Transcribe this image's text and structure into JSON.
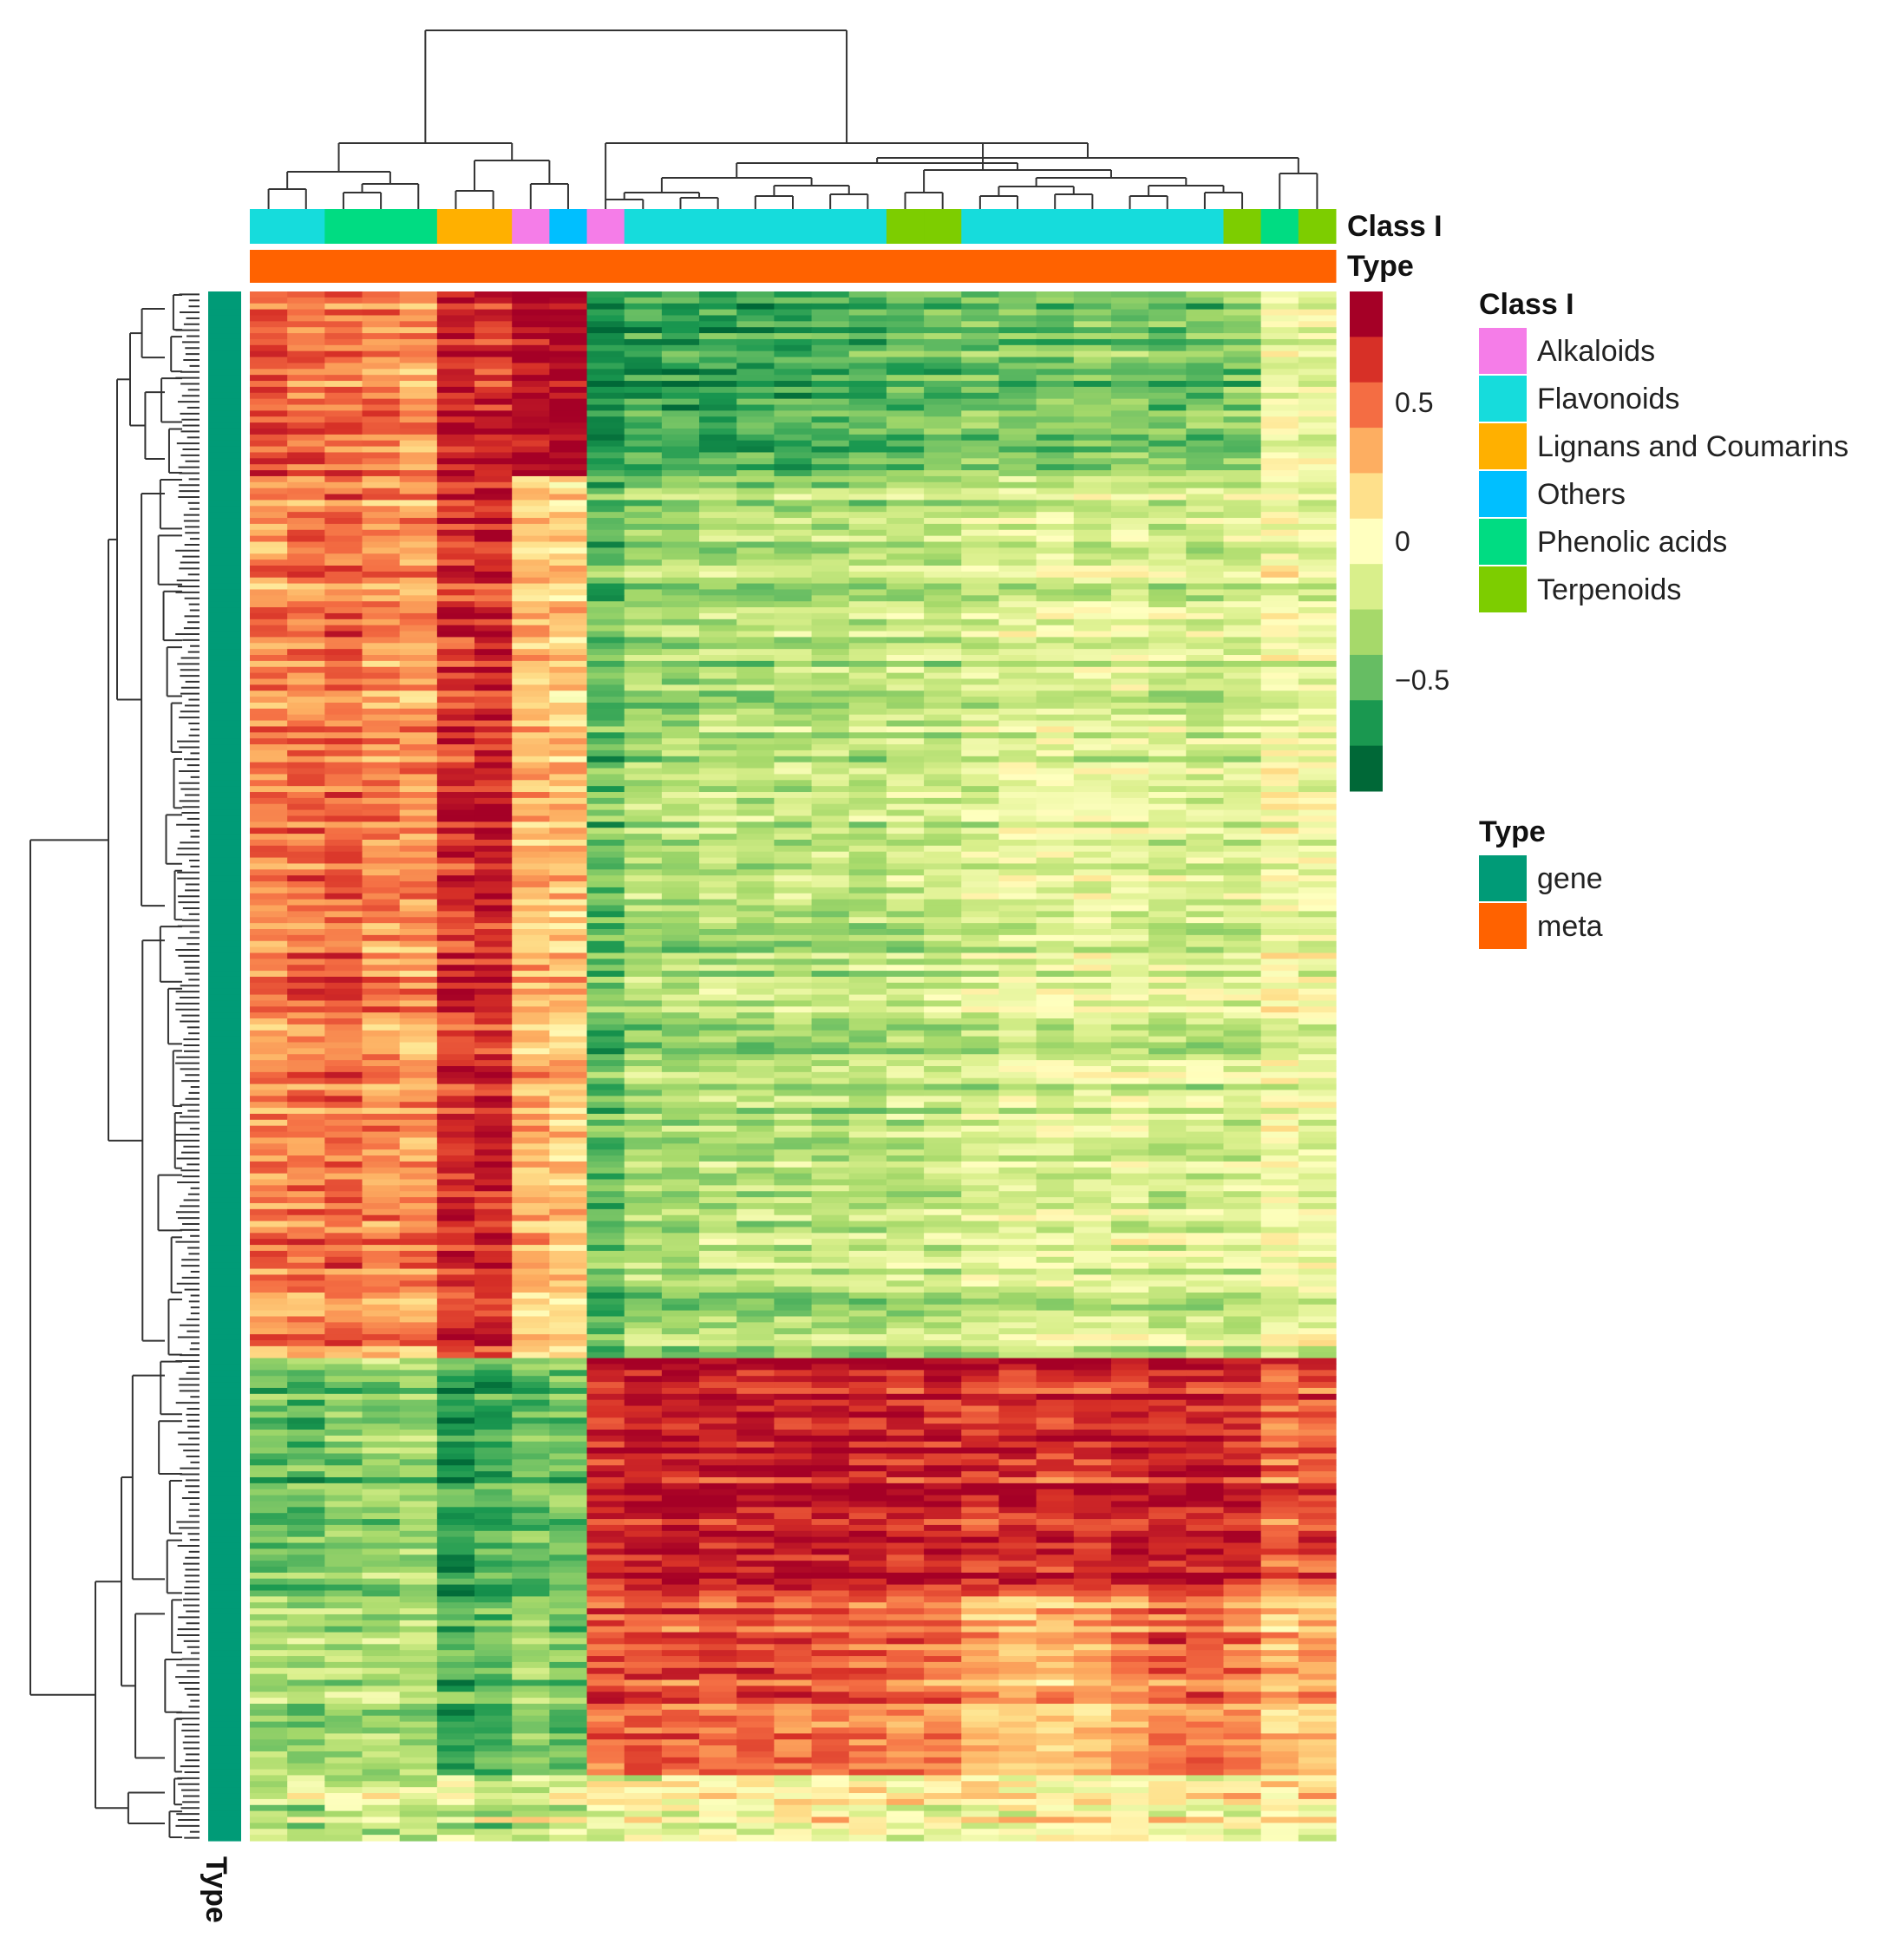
{
  "chart_data": {
    "type": "heatmap",
    "title": "",
    "color_scale": {
      "min": -0.9,
      "max": 0.9,
      "ticks": [
        0.5,
        0,
        -0.5
      ],
      "tick_labels": [
        "0.5",
        "0",
        "−0.5"
      ],
      "colors": [
        "#006837",
        "#1a9850",
        "#66bd63",
        "#a6d96a",
        "#d9ef8b",
        "#ffffbf",
        "#fee08b",
        "#fdae61",
        "#f46d43",
        "#d73027",
        "#a50026"
      ]
    },
    "column_annotation_labels": {
      "class": "Class I",
      "type": "Type"
    },
    "row_annotation_label": "Type",
    "legend_class": {
      "title": "Class I",
      "items": [
        {
          "label": "Alkaloids",
          "color": "#f57de8"
        },
        {
          "label": "Flavonoids",
          "color": "#16dcdc"
        },
        {
          "label": "Lignans and Coumarins",
          "color": "#ffb000"
        },
        {
          "label": "Others",
          "color": "#00bfff"
        },
        {
          "label": "Phenolic acids",
          "color": "#00dc82"
        },
        {
          "label": "Terpenoids",
          "color": "#7dcd00"
        }
      ]
    },
    "legend_type": {
      "title": "Type",
      "items": [
        {
          "label": "gene",
          "color": "#009b77"
        },
        {
          "label": "meta",
          "color": "#ff6200"
        }
      ]
    },
    "columns": [
      {
        "class": "Flavonoids",
        "type": "meta",
        "profile": [
          0.55,
          0.45,
          -0.5,
          -0.3
        ]
      },
      {
        "class": "Flavonoids",
        "type": "meta",
        "profile": [
          0.5,
          0.5,
          -0.55,
          -0.35
        ]
      },
      {
        "class": "Phenolic acids",
        "type": "meta",
        "profile": [
          0.5,
          0.55,
          -0.45,
          -0.3
        ]
      },
      {
        "class": "Phenolic acids",
        "type": "meta",
        "profile": [
          0.45,
          0.45,
          -0.4,
          -0.3
        ]
      },
      {
        "class": "Phenolic acids",
        "type": "meta",
        "profile": [
          0.35,
          0.4,
          -0.4,
          -0.3
        ]
      },
      {
        "class": "Lignans and Coumarins",
        "type": "meta",
        "profile": [
          0.75,
          0.7,
          -0.7,
          -0.6
        ]
      },
      {
        "class": "Lignans and Coumarins",
        "type": "meta",
        "profile": [
          0.7,
          0.75,
          -0.65,
          -0.55
        ]
      },
      {
        "class": "Alkaloids",
        "type": "meta",
        "profile": [
          0.8,
          0.3,
          -0.55,
          -0.4
        ]
      },
      {
        "class": "Others",
        "type": "meta",
        "profile": [
          0.85,
          0.25,
          -0.5,
          -0.45
        ]
      },
      {
        "class": "Alkaloids",
        "type": "meta",
        "profile": [
          -0.8,
          -0.55,
          0.75,
          0.6
        ]
      },
      {
        "class": "Flavonoids",
        "type": "meta",
        "profile": [
          -0.7,
          -0.35,
          0.8,
          0.65
        ]
      },
      {
        "class": "Flavonoids",
        "type": "meta",
        "profile": [
          -0.72,
          -0.35,
          0.82,
          0.62
        ]
      },
      {
        "class": "Flavonoids",
        "type": "meta",
        "profile": [
          -0.7,
          -0.3,
          0.78,
          0.6
        ]
      },
      {
        "class": "Flavonoids",
        "type": "meta",
        "profile": [
          -0.68,
          -0.32,
          0.8,
          0.62
        ]
      },
      {
        "class": "Flavonoids",
        "type": "meta",
        "profile": [
          -0.7,
          -0.3,
          0.82,
          0.6
        ]
      },
      {
        "class": "Flavonoids",
        "type": "meta",
        "profile": [
          -0.66,
          -0.3,
          0.78,
          0.58
        ]
      },
      {
        "class": "Flavonoids",
        "type": "meta",
        "profile": [
          -0.65,
          -0.3,
          0.8,
          0.55
        ]
      },
      {
        "class": "Terpenoids",
        "type": "meta",
        "profile": [
          -0.6,
          -0.25,
          0.78,
          0.55
        ]
      },
      {
        "class": "Terpenoids",
        "type": "meta",
        "profile": [
          -0.58,
          -0.25,
          0.75,
          0.5
        ]
      },
      {
        "class": "Flavonoids",
        "type": "meta",
        "profile": [
          -0.55,
          -0.2,
          0.72,
          0.35
        ]
      },
      {
        "class": "Flavonoids",
        "type": "meta",
        "profile": [
          -0.55,
          -0.15,
          0.72,
          0.3
        ]
      },
      {
        "class": "Flavonoids",
        "type": "meta",
        "profile": [
          -0.55,
          -0.15,
          0.7,
          0.3
        ]
      },
      {
        "class": "Flavonoids",
        "type": "meta",
        "profile": [
          -0.5,
          -0.15,
          0.72,
          0.35
        ]
      },
      {
        "class": "Flavonoids",
        "type": "meta",
        "profile": [
          -0.5,
          -0.15,
          0.75,
          0.45
        ]
      },
      {
        "class": "Flavonoids",
        "type": "meta",
        "profile": [
          -0.55,
          -0.2,
          0.8,
          0.55
        ]
      },
      {
        "class": "Flavonoids",
        "type": "meta",
        "profile": [
          -0.55,
          -0.2,
          0.8,
          0.55
        ]
      },
      {
        "class": "Terpenoids",
        "type": "meta",
        "profile": [
          -0.5,
          -0.2,
          0.75,
          0.5
        ]
      },
      {
        "class": "Phenolic acids",
        "type": "meta",
        "profile": [
          -0.1,
          -0.05,
          0.55,
          0.3
        ]
      },
      {
        "class": "Terpenoids",
        "type": "meta",
        "profile": [
          -0.15,
          -0.1,
          0.6,
          0.35
        ]
      }
    ],
    "row_clusters": [
      {
        "label": "",
        "fraction": 0.055,
        "type": "gene"
      },
      {
        "label": "",
        "fraction": 0.065,
        "type": "gene"
      },
      {
        "label": "",
        "fraction": 0.29,
        "type": "gene"
      },
      {
        "label": "",
        "fraction": 0.28,
        "type": "gene"
      },
      {
        "label": "",
        "fraction": 0.155,
        "type": "gene"
      },
      {
        "label": "",
        "fraction": 0.115,
        "type": "gene"
      },
      {
        "label": "",
        "fraction": 0.04,
        "type": "gene"
      }
    ]
  }
}
